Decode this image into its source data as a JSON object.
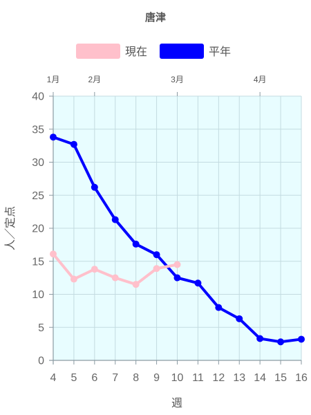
{
  "chart_data": {
    "type": "line",
    "title": "唐津",
    "xlabel": "週",
    "ylabel": "人／定点",
    "ylim": [
      0,
      40
    ],
    "y_ticks": [
      0,
      5,
      10,
      15,
      20,
      25,
      30,
      35,
      40
    ],
    "x": [
      4,
      5,
      6,
      7,
      8,
      9,
      10,
      11,
      12,
      13,
      14,
      15,
      16
    ],
    "month_labels": [
      {
        "label": "1月",
        "at": 4
      },
      {
        "label": "2月",
        "at": 6
      },
      {
        "label": "3月",
        "at": 10
      },
      {
        "label": "4月",
        "at": 14
      }
    ],
    "grid": true,
    "legend_position": "top",
    "plot_background": "#e8fdff",
    "series": [
      {
        "name": "現在",
        "color": "#ffc0cb",
        "values": [
          16.1,
          12.3,
          13.8,
          12.5,
          11.5,
          13.9,
          14.5,
          null,
          null,
          null,
          null,
          null,
          null
        ]
      },
      {
        "name": "平年",
        "color": "#0000ff",
        "values": [
          33.8,
          32.7,
          26.2,
          21.3,
          17.6,
          16.0,
          12.5,
          11.7,
          8.0,
          6.3,
          3.3,
          2.8,
          3.2
        ]
      }
    ]
  }
}
